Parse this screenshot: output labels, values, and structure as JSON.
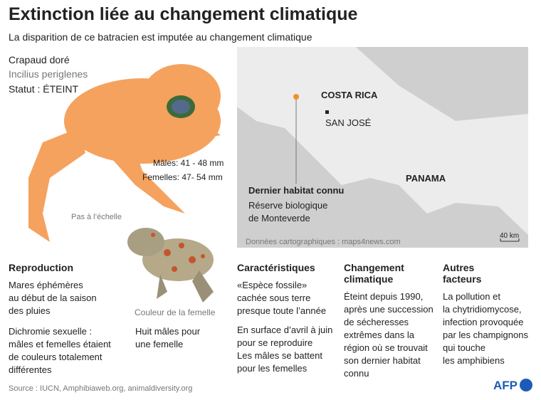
{
  "header": {
    "title": "Extinction liée au changement climatique",
    "subtitle": "La disparition de ce batracien est imputée au changement climatique"
  },
  "species": {
    "name": "Crapaud doré",
    "latin": "Incilius periglenes",
    "status": "Statut : ÉTEINT",
    "males": "Mâles: 41 - 48 mm",
    "females": "Femelles: 47- 54 mm",
    "scale_note": "Pas à l’échelle",
    "female_caption": "Couleur de la femelle"
  },
  "map": {
    "country1": "COSTA RICA",
    "capital": "SAN JOSÉ",
    "country2": "PANAMA",
    "habitat_title": "Dernier habitat connu",
    "habitat_lines": [
      "Réserve biologique",
      "de Monteverde"
    ],
    "credit": "Données cartographiques : maps4news.com",
    "scale": "40 km"
  },
  "sections": [
    {
      "heading": [
        "Reproduction"
      ],
      "paragraphs": [
        [
          "Mares éphémères",
          "au début de la saison",
          "des pluies"
        ],
        [
          "Dichromie sexuelle :",
          "mâles et femelles étaient",
          "de couleurs totalement",
          "différentes"
        ],
        [
          "Huit mâles pour",
          "une femelle"
        ]
      ]
    },
    {
      "heading": [
        "Caractéristiques"
      ],
      "paragraphs": [
        [
          "«Espèce fossile»",
          "cachée sous terre",
          "presque toute l’année"
        ],
        [
          "En surface d’avril à juin",
          "pour se reproduire",
          "Les mâles se battent",
          "pour les femelles"
        ]
      ]
    },
    {
      "heading": [
        "Changement",
        "climatique"
      ],
      "paragraphs": [
        [
          "Éteint depuis 1990,",
          "après une succession",
          "de sécheresses",
          "extrêmes dans la",
          "région où se trouvait",
          "son dernier habitat",
          "connu"
        ]
      ]
    },
    {
      "heading": [
        "Autres",
        "facteurs"
      ],
      "paragraphs": [
        [
          "La pollution et",
          "la chytridiomycose,",
          "infection provoquée",
          "par les champignons",
          "qui touche",
          "les amphibiens"
        ]
      ]
    }
  ],
  "footer": {
    "source": "Source : IUCN, Amphibiaweb.org, animaldiversity.org",
    "logo": "AFP"
  }
}
